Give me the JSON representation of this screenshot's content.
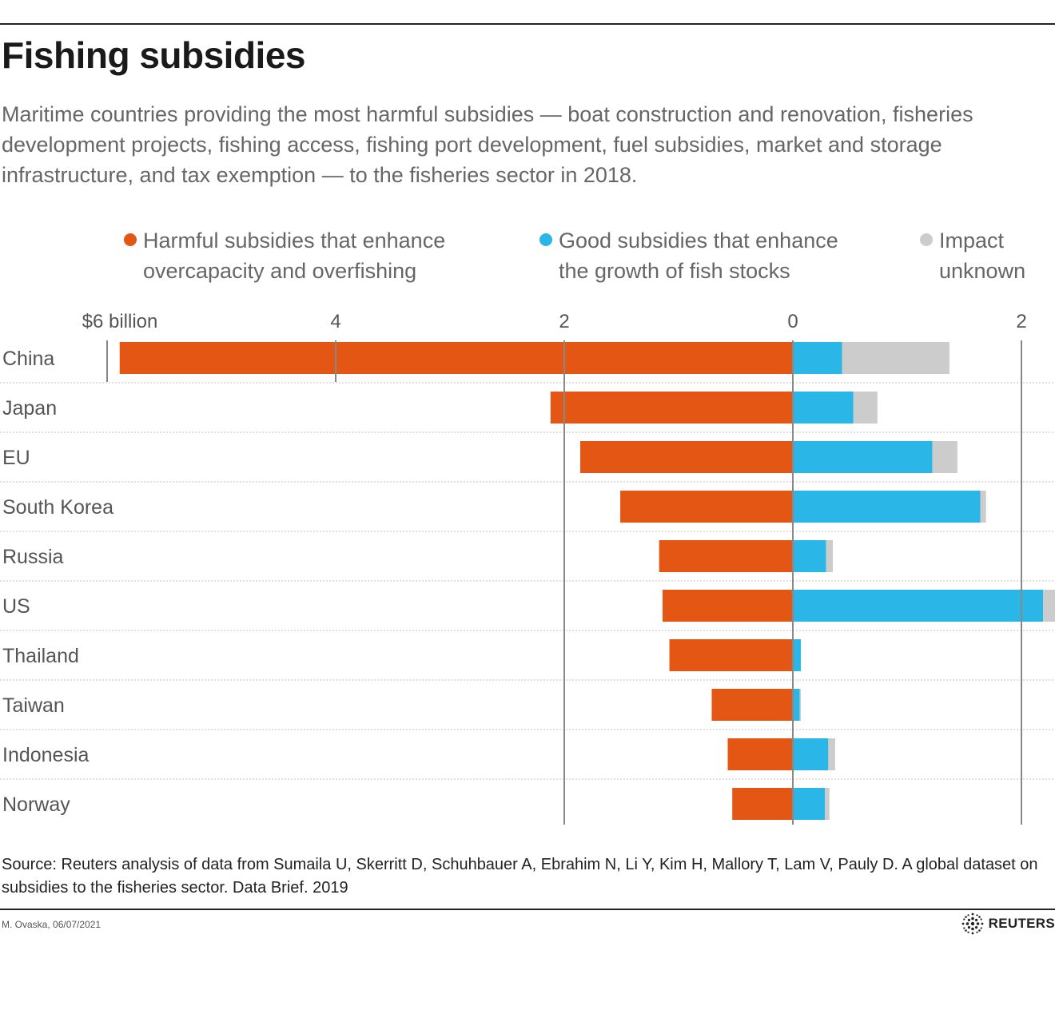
{
  "title": "Fishing subsidies",
  "subtitle": "Maritime countries providing the most harmful subsidies — boat construction and renovation, fisheries development projects, fishing access, fishing port development, fuel subsidies, market and storage infrastructure, and tax exemption — to the fisheries sector in 2018.",
  "legend": [
    {
      "lines": [
        "Harmful subsidies that enhance",
        "overcapacity and overfishing"
      ],
      "color": "#e35613"
    },
    {
      "lines": [
        "Good subsidies that enhance",
        "the growth of fish stocks"
      ],
      "color": "#2bb6e8"
    },
    {
      "lines": [
        "Impact",
        "unknown"
      ],
      "color": "#cccccc"
    }
  ],
  "chart_data": {
    "type": "bar",
    "orientation": "horizontal-diverging",
    "unit": "billion",
    "x_tick_labels": [
      {
        "value": -6,
        "label": "$6 billion"
      },
      {
        "value": -4,
        "label": "4"
      },
      {
        "value": -2,
        "label": "2"
      },
      {
        "value": 0,
        "label": "0"
      },
      {
        "value": 2,
        "label": "2"
      }
    ],
    "xlim": [
      -6,
      2.3
    ],
    "categories": [
      "China",
      "Japan",
      "EU",
      "South Korea",
      "Russia",
      "US",
      "Thailand",
      "Taiwan",
      "Indonesia",
      "Norway"
    ],
    "series": [
      {
        "name": "Harmful subsidies that enhance overcapacity and overfishing",
        "color": "#e35613",
        "direction": "left",
        "values": [
          5.89,
          2.12,
          1.86,
          1.51,
          1.17,
          1.14,
          1.08,
          0.71,
          0.57,
          0.53
        ]
      },
      {
        "name": "Good subsidies that enhance the growth of fish stocks",
        "color": "#2bb6e8",
        "direction": "right",
        "values": [
          0.43,
          0.53,
          1.22,
          1.64,
          0.29,
          2.19,
          0.07,
          0.06,
          0.31,
          0.28
        ]
      },
      {
        "name": "Impact unknown",
        "color": "#cccccc",
        "direction": "right",
        "values": [
          0.94,
          0.21,
          0.22,
          0.05,
          0.06,
          0.11,
          0.0,
          0.01,
          0.06,
          0.04
        ]
      }
    ],
    "grid": true,
    "legend_position": "top"
  },
  "source": "Source: Reuters analysis of data from Sumaila U, Skerritt D, Schuhbauer A, Ebrahim N, Li Y, Kim H, Mallory T, Lam V, Pauly D. A global dataset on subsidies to the fisheries sector. Data Brief. 2019",
  "byline": "M. Ovaska, 06/07/2021",
  "brand": "REUTERS"
}
